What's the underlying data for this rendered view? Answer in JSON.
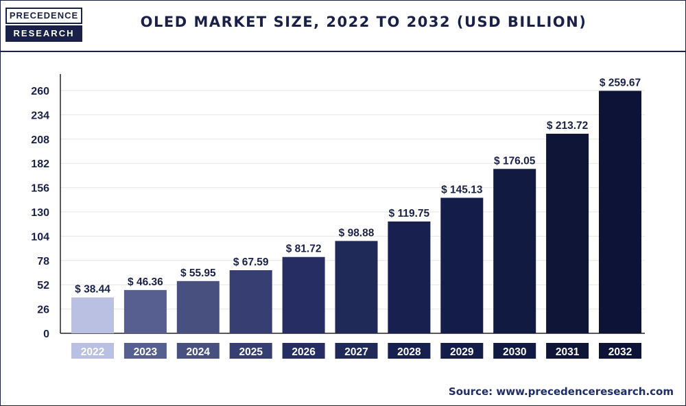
{
  "logo": {
    "line1": "PRECEDENCE",
    "line2": "RESEARCH"
  },
  "title": "OLED MARKET SIZE, 2022 TO 2032 (USD BILLION)",
  "source": "Source: www.precedenceresearch.com",
  "colors": {
    "bars": [
      "#b9c0e1",
      "#575f91",
      "#48507f",
      "#363e72",
      "#262d62",
      "#1f2a58",
      "#17204e",
      "#141d49",
      "#111a40",
      "#0e1536",
      "#0c1336"
    ],
    "text": "#1a2148",
    "grid": "#e6e6e6"
  },
  "chart_data": {
    "type": "bar",
    "title": "OLED MARKET SIZE, 2022 TO 2032 (USD BILLION)",
    "categories": [
      "2022",
      "2023",
      "2024",
      "2025",
      "2026",
      "2027",
      "2028",
      "2029",
      "2030",
      "2031",
      "2032"
    ],
    "values": [
      38.44,
      46.36,
      55.95,
      67.59,
      81.72,
      98.88,
      119.75,
      145.13,
      176.05,
      213.72,
      259.67
    ],
    "value_labels": [
      "$ 38.44",
      "$ 46.36",
      "$ 55.95",
      "$ 67.59",
      "$ 81.72",
      "$ 98.88",
      "$ 119.75",
      "$ 145.13",
      "$ 176.05",
      "$ 213.72",
      "$ 259.67"
    ],
    "yticks": [
      0,
      26,
      52,
      78,
      104,
      130,
      156,
      182,
      208,
      234,
      260
    ],
    "ylim": [
      0,
      260
    ],
    "xlabel": "",
    "ylabel": "",
    "grid": true,
    "legend": "none"
  }
}
